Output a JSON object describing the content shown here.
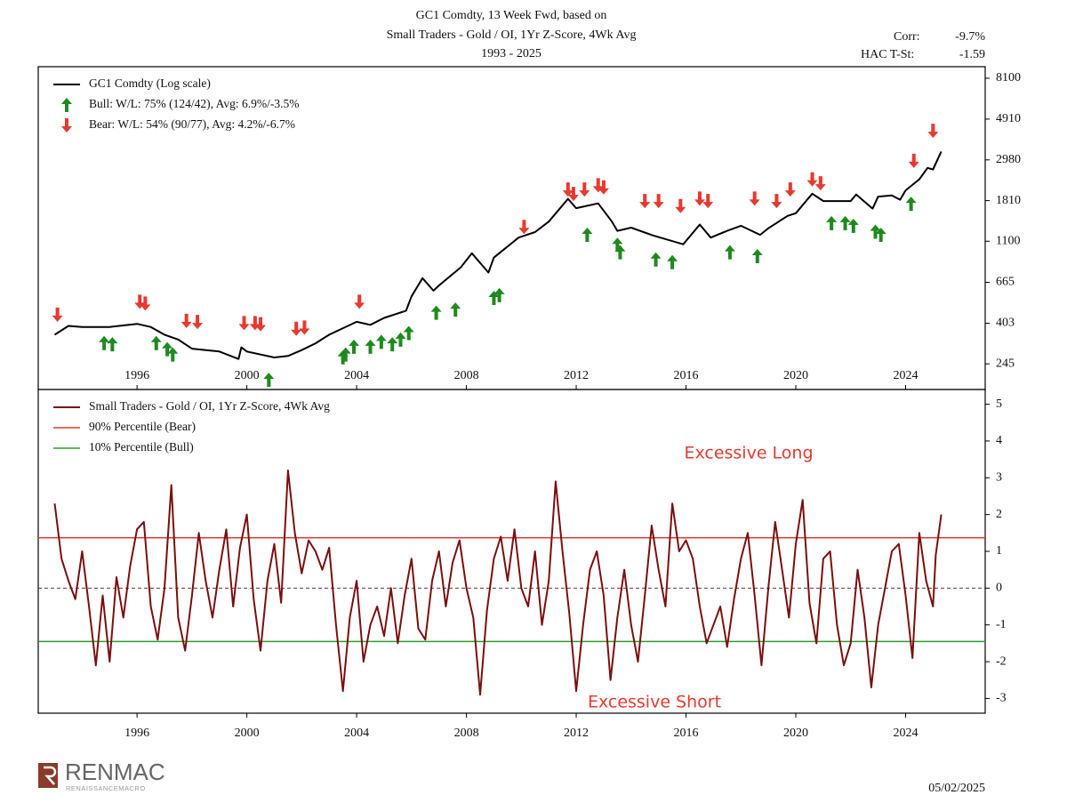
{
  "header": {
    "title": [
      "GC1 Comdty, 13 Week Fwd, based on",
      "Small Traders - Gold / OI, 1Yr Z-Score, 4Wk Avg",
      "1993 - 2025"
    ],
    "stats": [
      {
        "label": "Corr:",
        "value": "-9.7%"
      },
      {
        "label": "HAC T-St:",
        "value": "-1.59"
      }
    ]
  },
  "chart_data": [
    {
      "type": "line",
      "yscale": "log",
      "xlim": [
        1992.4,
        2026.9
      ],
      "ylim": [
        179,
        9330
      ],
      "xticks": [
        1996,
        2000,
        2004,
        2008,
        2012,
        2016,
        2020,
        2024
      ],
      "yticks": [
        245,
        403,
        665,
        1100,
        1810,
        2980,
        4910,
        8100
      ],
      "series": [
        {
          "name": "GC1 Comdty (Log scale)",
          "color": "#000000",
          "marker": "line",
          "x": [
            1993.0,
            1993.5,
            1994,
            1995,
            1996,
            1996.5,
            1997,
            1997.5,
            1998,
            1999,
            1999.7,
            1999.8,
            2000,
            2001,
            2001.5,
            2002,
            2002.5,
            2003,
            2004,
            2004.5,
            2005,
            2005.8,
            2006,
            2006.4,
            2006.8,
            2007,
            2007.8,
            2008.2,
            2008.8,
            2009,
            2009.9,
            2010.5,
            2011,
            2011.7,
            2012,
            2012.8,
            2013.3,
            2013.5,
            2014,
            2014.8,
            2015.9,
            2016.5,
            2016.9,
            2017.5,
            2018,
            2018.7,
            2019,
            2019.7,
            2020,
            2020.6,
            2021,
            2021.5,
            2022,
            2022.2,
            2022.8,
            2023,
            2023.5,
            2023.8,
            2024,
            2024.5,
            2024.8,
            2025,
            2025.3
          ],
          "values": [
            350,
            390,
            385,
            385,
            400,
            385,
            350,
            330,
            295,
            285,
            260,
            300,
            285,
            265,
            270,
            290,
            315,
            350,
            410,
            395,
            430,
            470,
            560,
            700,
            600,
            640,
            800,
            950,
            750,
            900,
            1150,
            1230,
            1400,
            1850,
            1650,
            1750,
            1400,
            1250,
            1300,
            1180,
            1060,
            1350,
            1150,
            1250,
            1330,
            1190,
            1290,
            1500,
            1550,
            1970,
            1800,
            1800,
            1800,
            1950,
            1640,
            1900,
            1930,
            1830,
            2050,
            2350,
            2700,
            2650,
            3300
          ]
        },
        {
          "name": "Bull: W/L: 75% (124/42), Avg: 6.9%/-3.5%",
          "color": "#1e8a1e",
          "marker": "up-arrow",
          "x": [
            1994.8,
            1995.1,
            1996.7,
            1997.1,
            1997.3,
            2000.8,
            2003.5,
            2003.6,
            2003.9,
            2004.5,
            2004.9,
            2005.3,
            2005.6,
            2005.9,
            2006.9,
            2007.6,
            2009,
            2009.2,
            2012.4,
            2013.5,
            2013.6,
            2014.9,
            2015.5,
            2017.6,
            2018.6,
            2021.3,
            2021.8,
            2022.1,
            2022.9,
            2023.1,
            2024.2
          ],
          "values": [
            345,
            340,
            345,
            320,
            300,
            220,
            290,
            300,
            330,
            330,
            350,
            340,
            360,
            390,
            500,
            520,
            600,
            620,
            1300,
            1150,
            1050,
            960,
            930,
            1050,
            1000,
            1500,
            1500,
            1450,
            1350,
            1300,
            1900
          ]
        },
        {
          "name": "Bear: W/L: 54% (90/77), Avg: 4.2%/-6.7%",
          "color": "#e8392f",
          "marker": "down-arrow",
          "x": [
            1993.1,
            1996.1,
            1996.3,
            1997.8,
            1998.2,
            1999.9,
            2000.3,
            2000.5,
            2001.8,
            2002.1,
            2004.1,
            2010.1,
            2011.7,
            2011.9,
            2012.3,
            2012.8,
            2013,
            2014.5,
            2015,
            2015.8,
            2016.5,
            2016.8,
            2018.5,
            2019.3,
            2019.8,
            2020.6,
            2020.9,
            2024.3,
            2025.0
          ],
          "values": [
            410,
            480,
            470,
            380,
            375,
            370,
            370,
            365,
            345,
            350,
            480,
            1200,
            1900,
            1800,
            1900,
            2000,
            1950,
            1650,
            1650,
            1550,
            1700,
            1650,
            1700,
            1650,
            1900,
            2150,
            2050,
            2700,
            3900
          ]
        }
      ]
    },
    {
      "type": "line",
      "xlim": [
        1992.4,
        2026.9
      ],
      "ylim": [
        -3.4,
        5.4
      ],
      "xticks": [
        1996,
        2000,
        2004,
        2008,
        2012,
        2016,
        2020,
        2024
      ],
      "yticks": [
        5,
        4,
        3,
        2,
        1,
        0,
        -1,
        -2,
        -3
      ],
      "series": [
        {
          "name": "Small Traders - Gold / OI, 1Yr Z-Score, 4Wk Avg",
          "color": "#7a0f0f",
          "marker": "line",
          "x": [
            1993.0,
            1993.25,
            1993.5,
            1993.75,
            1994.0,
            1994.25,
            1994.5,
            1994.75,
            1995.0,
            1995.25,
            1995.5,
            1995.75,
            1996.0,
            1996.25,
            1996.5,
            1996.75,
            1997.0,
            1997.25,
            1997.5,
            1997.75,
            1998.0,
            1998.25,
            1998.5,
            1998.75,
            1999.0,
            1999.25,
            1999.5,
            1999.75,
            2000.0,
            2000.25,
            2000.5,
            2000.75,
            2001.0,
            2001.25,
            2001.5,
            2001.75,
            2002.0,
            2002.25,
            2002.5,
            2002.75,
            2003.0,
            2003.25,
            2003.5,
            2003.75,
            2004.0,
            2004.25,
            2004.5,
            2004.75,
            2005.0,
            2005.25,
            2005.5,
            2005.75,
            2006.0,
            2006.25,
            2006.5,
            2006.75,
            2007.0,
            2007.25,
            2007.5,
            2007.75,
            2008.0,
            2008.25,
            2008.5,
            2008.75,
            2009.0,
            2009.25,
            2009.5,
            2009.75,
            2010.0,
            2010.25,
            2010.5,
            2010.75,
            2011.0,
            2011.25,
            2011.5,
            2011.75,
            2012.0,
            2012.25,
            2012.5,
            2012.75,
            2013.0,
            2013.25,
            2013.5,
            2013.75,
            2014.0,
            2014.25,
            2014.5,
            2014.75,
            2015.0,
            2015.25,
            2015.5,
            2015.75,
            2016.0,
            2016.25,
            2016.5,
            2016.75,
            2017.0,
            2017.25,
            2017.5,
            2017.75,
            2018.0,
            2018.25,
            2018.5,
            2018.75,
            2019.0,
            2019.25,
            2019.5,
            2019.75,
            2020.0,
            2020.25,
            2020.5,
            2020.75,
            2021.0,
            2021.25,
            2021.5,
            2021.75,
            2022.0,
            2022.25,
            2022.5,
            2022.75,
            2023.0,
            2023.25,
            2023.5,
            2023.75,
            2024.0,
            2024.25,
            2024.5,
            2024.75,
            2025.0,
            2025.1,
            2025.3
          ],
          "values": [
            2.3,
            0.8,
            0.2,
            -0.3,
            1.0,
            -0.5,
            -2.1,
            -0.2,
            -2.0,
            0.3,
            -0.8,
            0.6,
            1.6,
            1.8,
            -0.5,
            -1.4,
            0.0,
            2.8,
            -0.8,
            -1.7,
            -0.2,
            1.5,
            0.2,
            -0.8,
            0.5,
            1.6,
            -0.5,
            1.1,
            2.0,
            -0.3,
            -1.7,
            0.2,
            1.2,
            -0.4,
            3.2,
            1.5,
            0.4,
            1.3,
            1.0,
            0.5,
            1.1,
            -1.0,
            -2.8,
            -0.8,
            0.2,
            -2.0,
            -1.0,
            -0.5,
            -1.3,
            0.0,
            -1.5,
            -0.2,
            0.8,
            -1.1,
            -1.4,
            0.2,
            1.0,
            -0.5,
            0.7,
            1.3,
            0.0,
            -0.8,
            -2.9,
            -0.6,
            0.8,
            1.4,
            0.2,
            1.6,
            0.0,
            -0.5,
            1.0,
            -1.0,
            0.2,
            2.9,
            1.0,
            -0.7,
            -2.8,
            -1.0,
            0.5,
            1.0,
            -0.2,
            -2.5,
            -0.8,
            0.5,
            -1.0,
            -2.0,
            -0.2,
            1.7,
            0.5,
            -0.5,
            2.3,
            1.0,
            1.3,
            0.8,
            -0.5,
            -1.5,
            -1.0,
            -0.5,
            -1.6,
            -0.3,
            0.8,
            1.5,
            -0.2,
            -2.1,
            0.0,
            1.8,
            0.5,
            -0.8,
            1.2,
            2.4,
            -0.4,
            -1.5,
            0.8,
            1.0,
            -1.0,
            -2.1,
            -1.5,
            0.5,
            -0.8,
            -2.7,
            -1.0,
            0.0,
            1.0,
            1.2,
            -0.2,
            -1.9,
            1.5,
            0.2,
            -0.5,
            0.9,
            2.0
          ]
        }
      ],
      "hlines": [
        {
          "name": "90% Percentile (Bear)",
          "color": "#e8392f",
          "value": 1.37
        },
        {
          "name": "10% Percentile (Bull)",
          "color": "#2ca02c",
          "value": -1.45
        },
        {
          "color": "#7a3030",
          "value": 0,
          "style": "dashed"
        }
      ],
      "annotations": [
        "Excessive Long",
        "Excessive Short"
      ]
    }
  ],
  "footer": {
    "brand": "RENMAC",
    "brand_sub": "RENAISSANCEMACRO",
    "date": "05/02/2025"
  }
}
